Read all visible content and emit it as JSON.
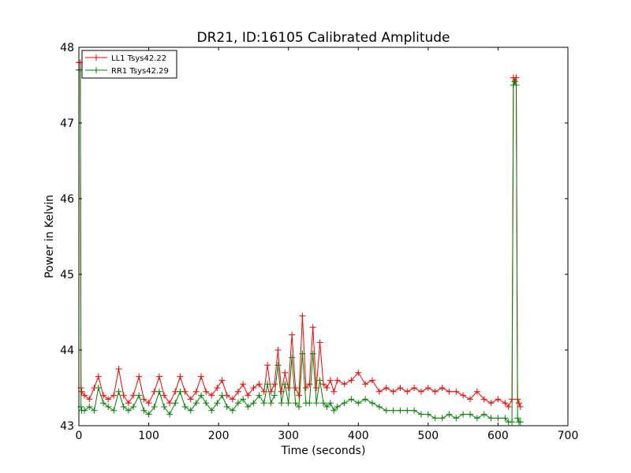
{
  "chart_data": {
    "type": "line",
    "title": "DR21, ID:16105 Calibrated Amplitude",
    "xlabel": "Time (seconds)",
    "ylabel": "Power in Kelvin",
    "xlim": [
      0,
      700
    ],
    "ylim": [
      43,
      48
    ],
    "xticks": [
      "0",
      "100",
      "200",
      "300",
      "400",
      "500",
      "600",
      "700"
    ],
    "yticks": [
      "43",
      "44",
      "45",
      "46",
      "47",
      "48"
    ],
    "grid": false,
    "legend_position": "top-left",
    "marker": "plus",
    "series": [
      {
        "name": "LL1 Tsys42.22",
        "color": "#ff0000",
        "x": [
          0,
          2,
          3,
          4,
          8,
          15,
          22,
          28,
          35,
          42,
          50,
          57,
          64,
          71,
          78,
          86,
          93,
          100,
          108,
          115,
          122,
          130,
          138,
          145,
          152,
          160,
          168,
          175,
          182,
          190,
          198,
          205,
          212,
          220,
          228,
          235,
          242,
          250,
          258,
          265,
          270,
          275,
          280,
          285,
          290,
          295,
          300,
          305,
          310,
          315,
          320,
          325,
          330,
          335,
          340,
          345,
          350,
          355,
          360,
          365,
          370,
          380,
          390,
          400,
          410,
          420,
          430,
          440,
          450,
          460,
          470,
          480,
          490,
          500,
          510,
          520,
          530,
          540,
          550,
          560,
          570,
          580,
          590,
          600,
          610,
          615,
          620,
          622,
          624,
          626,
          628,
          630,
          632
        ],
        "y": [
          47.8,
          47.8,
          43.5,
          43.45,
          43.4,
          43.35,
          43.5,
          43.65,
          43.4,
          43.35,
          43.4,
          43.75,
          43.4,
          43.3,
          43.4,
          43.65,
          43.35,
          43.3,
          43.45,
          43.65,
          43.4,
          43.3,
          43.45,
          43.65,
          43.45,
          43.35,
          43.45,
          43.65,
          43.45,
          43.4,
          43.5,
          43.6,
          43.4,
          43.35,
          43.45,
          43.55,
          43.4,
          43.5,
          43.55,
          43.45,
          43.8,
          43.45,
          43.55,
          44.0,
          43.45,
          43.7,
          43.5,
          44.2,
          43.5,
          43.4,
          44.45,
          43.5,
          43.55,
          44.3,
          43.5,
          44.1,
          43.55,
          43.5,
          43.6,
          43.45,
          43.6,
          43.55,
          43.6,
          43.7,
          43.55,
          43.6,
          43.45,
          43.5,
          43.45,
          43.5,
          43.45,
          43.5,
          43.45,
          43.5,
          43.45,
          43.5,
          43.45,
          43.45,
          43.4,
          43.35,
          43.45,
          43.35,
          43.3,
          43.35,
          43.3,
          43.25,
          43.35,
          47.6,
          47.55,
          47.6,
          43.35,
          43.3,
          43.25
        ]
      },
      {
        "name": "RR1 Tsys42.29",
        "color": "#008000",
        "x": [
          0,
          2,
          3,
          4,
          8,
          15,
          22,
          28,
          35,
          42,
          50,
          57,
          64,
          71,
          78,
          86,
          93,
          100,
          108,
          115,
          122,
          130,
          138,
          145,
          152,
          160,
          168,
          175,
          182,
          190,
          198,
          205,
          212,
          220,
          228,
          235,
          242,
          250,
          258,
          265,
          270,
          275,
          280,
          285,
          290,
          295,
          300,
          305,
          310,
          315,
          320,
          325,
          330,
          335,
          340,
          345,
          350,
          355,
          360,
          365,
          370,
          380,
          390,
          400,
          410,
          420,
          430,
          440,
          450,
          460,
          470,
          480,
          490,
          500,
          510,
          520,
          530,
          540,
          550,
          560,
          570,
          580,
          590,
          600,
          610,
          615,
          620,
          622,
          624,
          626,
          628,
          630,
          632
        ],
        "y": [
          47.7,
          47.7,
          43.25,
          43.2,
          43.2,
          43.25,
          43.2,
          43.5,
          43.3,
          43.25,
          43.2,
          43.45,
          43.25,
          43.2,
          43.25,
          43.4,
          43.2,
          43.15,
          43.25,
          43.45,
          43.25,
          43.15,
          43.3,
          43.45,
          43.25,
          43.2,
          43.3,
          43.4,
          43.3,
          43.2,
          43.3,
          43.4,
          43.25,
          43.2,
          43.3,
          43.35,
          43.25,
          43.3,
          43.4,
          43.3,
          43.55,
          43.3,
          43.4,
          43.8,
          43.3,
          43.55,
          43.3,
          43.9,
          43.3,
          43.25,
          43.95,
          43.3,
          43.3,
          43.95,
          43.3,
          43.6,
          43.3,
          43.25,
          43.3,
          43.2,
          43.25,
          43.3,
          43.35,
          43.3,
          43.35,
          43.3,
          43.25,
          43.2,
          43.2,
          43.2,
          43.2,
          43.2,
          43.15,
          43.15,
          43.1,
          43.1,
          43.15,
          43.1,
          43.15,
          43.15,
          43.1,
          43.15,
          43.1,
          43.1,
          43.1,
          43.05,
          43.05,
          47.5,
          47.55,
          47.5,
          43.1,
          43.05,
          43.05
        ]
      }
    ]
  }
}
